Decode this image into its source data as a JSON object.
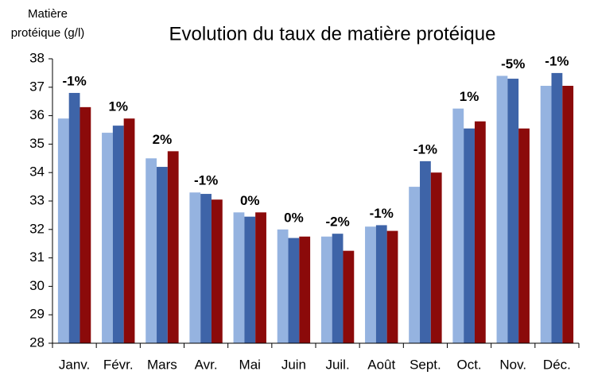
{
  "chart_data": {
    "type": "bar",
    "title": "Evolution du taux de matière protéique",
    "y_label": [
      "Matière",
      "protéique (g/l)"
    ],
    "categories": [
      "Janv.",
      "Févr.",
      "Mars",
      "Avr.",
      "Mai",
      "Juin",
      "Juil.",
      "Août",
      "Sept.",
      "Oct.",
      "Nov.",
      "Déc."
    ],
    "series": [
      {
        "color": "#95b3e0",
        "values": [
          35.9,
          35.4,
          34.5,
          33.3,
          32.6,
          32.0,
          31.75,
          32.1,
          33.5,
          36.25,
          37.4,
          37.05
        ]
      },
      {
        "color": "#3e64a8",
        "values": [
          36.8,
          35.65,
          34.2,
          33.25,
          32.45,
          31.7,
          31.85,
          32.15,
          34.4,
          35.55,
          37.3,
          37.5
        ]
      },
      {
        "color": "#8b0a0a",
        "values": [
          36.3,
          35.9,
          34.75,
          33.05,
          32.6,
          31.75,
          31.25,
          31.95,
          34.0,
          35.8,
          35.55,
          37.05
        ]
      }
    ],
    "annotations": [
      "-1%",
      "1%",
      "2%",
      "-1%",
      "0%",
      "0%",
      "-2%",
      "-1%",
      "-1%",
      "1%",
      "-5%",
      "-1%"
    ],
    "ylim": [
      28,
      38
    ],
    "yticks": [
      28,
      29,
      30,
      31,
      32,
      33,
      34,
      35,
      36,
      37,
      38
    ],
    "grid": false
  }
}
